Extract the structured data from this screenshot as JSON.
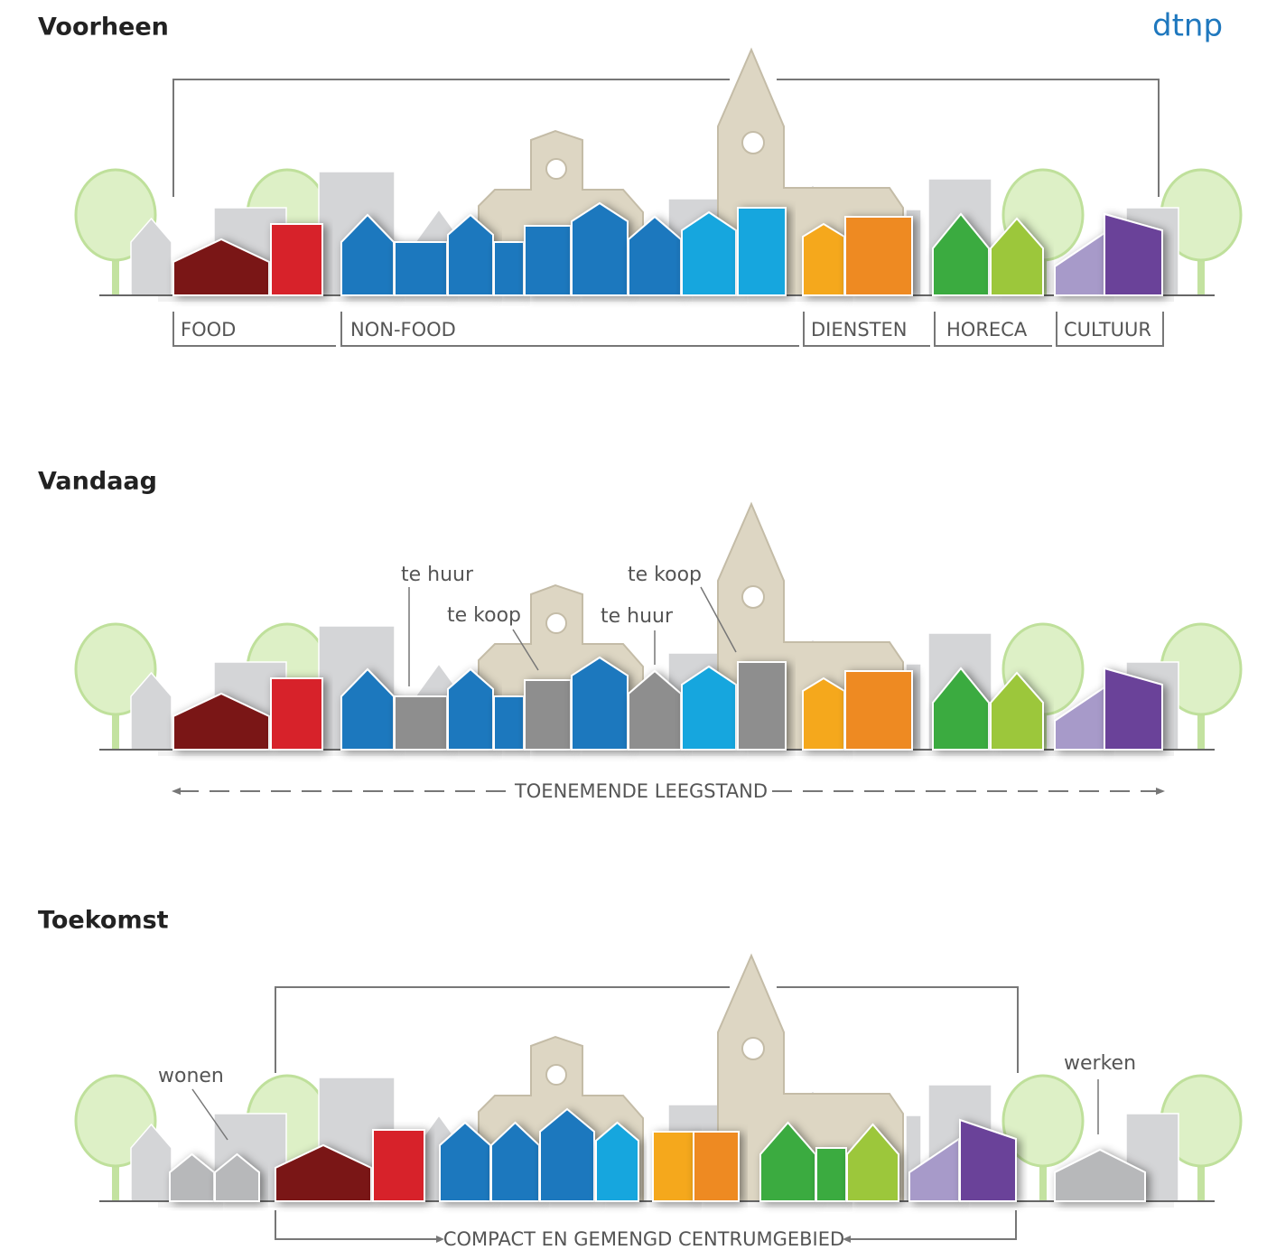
{
  "logo": "dtnp",
  "panels": [
    {
      "title": "Voorheen",
      "categories": [
        "FOOD",
        "NON-FOOD",
        "DIENSTEN",
        "HORECA",
        "CULTUUR"
      ]
    },
    {
      "title": "Vandaag",
      "annotations": [
        "te huur",
        "te koop",
        "te koop",
        "te huur"
      ],
      "caption": "TOENEMENDE LEEGSTAND"
    },
    {
      "title": "Toekomst",
      "annotations": [
        "wonen",
        "werken"
      ],
      "caption": "COMPACT EN GEMENGD CENTRUMGEBIED"
    }
  ]
}
